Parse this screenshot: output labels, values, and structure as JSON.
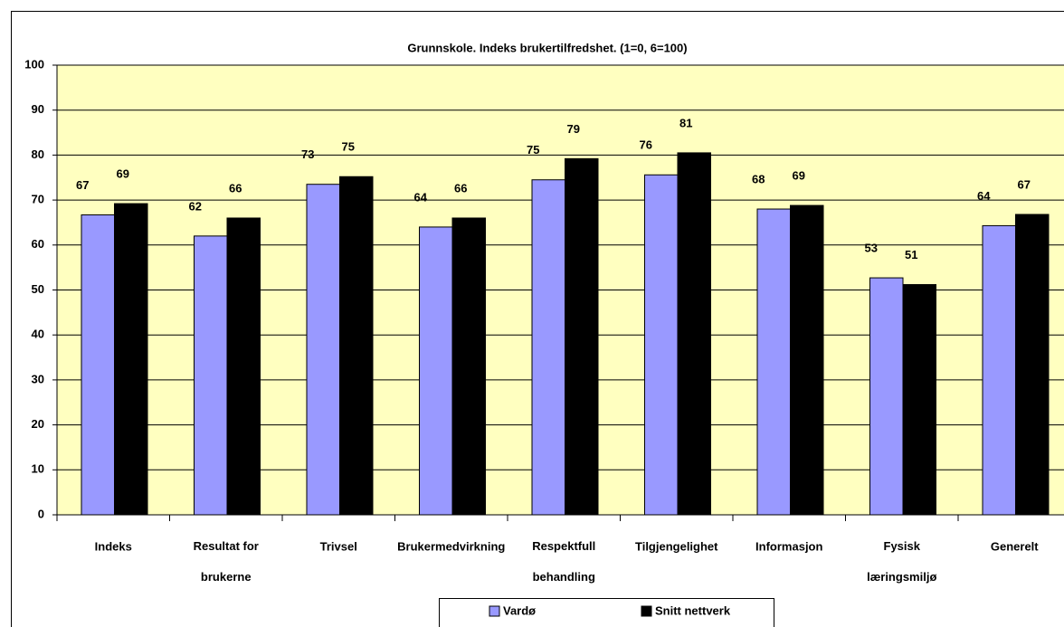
{
  "chart_data": {
    "type": "bar",
    "title": "Grunnskole.  Indeks brukertilfredshet. (1=0, 6=100)",
    "categories": [
      "Indeks",
      "Resultat for\nbrukerne",
      "Trivsel",
      "Brukermedvirkning",
      "Respektfull\nbehandling",
      "Tilgjengelighet",
      "Informasjon",
      "Fysisk\nlæringsmiljø",
      "Generelt"
    ],
    "series": [
      {
        "name": "Vardø",
        "color": "#9999ff",
        "values": [
          66.7,
          62,
          73.5,
          64,
          74.5,
          75.6,
          68,
          52.7,
          64.3
        ],
        "value_labels": [
          "67",
          "62",
          "73",
          "64",
          "75",
          "76",
          "68",
          "53",
          "64"
        ]
      },
      {
        "name": "Snitt nettverk",
        "color": "#000000",
        "values": [
          69.2,
          66,
          75.2,
          66,
          79.2,
          80.5,
          68.8,
          51.2,
          66.8
        ],
        "value_labels": [
          "69",
          "66",
          "75",
          "66",
          "79",
          "81",
          "69",
          "51",
          "67"
        ]
      }
    ],
    "ylim": [
      0,
      100
    ],
    "yticks": [
      0,
      10,
      20,
      30,
      40,
      50,
      60,
      70,
      80,
      90,
      100
    ],
    "grid": true,
    "legend": "bottom",
    "background": "#ffffc0"
  }
}
